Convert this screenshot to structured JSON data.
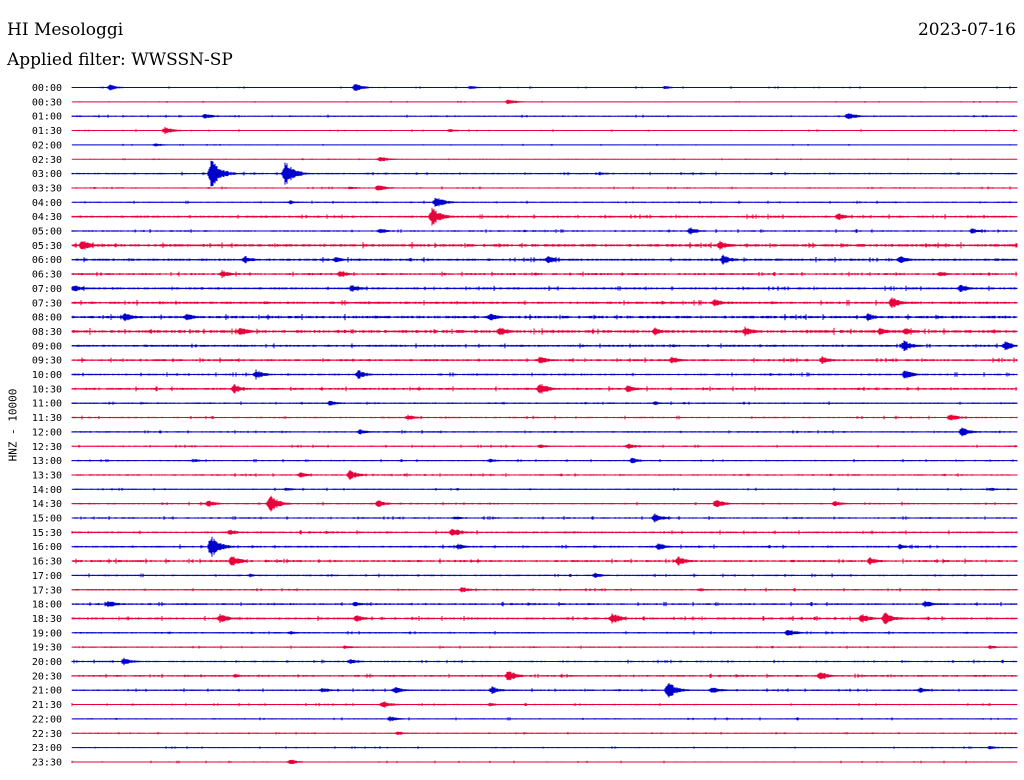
{
  "header": {
    "station": "HI Mesologgi",
    "date": "2023-07-16",
    "filter": "Applied filter: WWSSN-SP"
  },
  "chart_data": {
    "type": "line",
    "subtype": "helicorder",
    "ylabel": "HNZ - 10000",
    "row_labels": [
      "00:00",
      "00:30",
      "01:00",
      "01:30",
      "02:00",
      "02:30",
      "03:00",
      "03:30",
      "04:00",
      "04:30",
      "05:00",
      "05:30",
      "06:00",
      "06:30",
      "07:00",
      "07:30",
      "08:00",
      "08:30",
      "09:00",
      "09:30",
      "10:00",
      "10:30",
      "11:00",
      "11:30",
      "12:00",
      "12:30",
      "13:00",
      "13:30",
      "14:00",
      "14:30",
      "15:00",
      "15:30",
      "16:00",
      "16:30",
      "17:00",
      "17:30",
      "18:00",
      "18:30",
      "19:00",
      "19:30",
      "20:00",
      "20:30",
      "21:00",
      "21:30",
      "22:00",
      "22:30",
      "23:00",
      "23:30"
    ],
    "colors": [
      "#0000cc",
      "#e8003a"
    ],
    "noise_level": [
      0.4,
      0.3,
      0.5,
      0.4,
      0.3,
      0.3,
      0.6,
      0.5,
      0.5,
      0.8,
      0.6,
      1.0,
      0.9,
      0.8,
      0.8,
      0.9,
      1.0,
      1.1,
      0.8,
      0.8,
      0.7,
      0.8,
      0.6,
      0.6,
      0.6,
      0.5,
      0.5,
      0.6,
      0.5,
      0.6,
      0.6,
      0.7,
      0.7,
      0.8,
      0.6,
      0.6,
      0.7,
      0.8,
      0.6,
      0.5,
      0.6,
      0.7,
      0.6,
      0.5,
      0.5,
      0.4,
      0.4,
      0.4
    ],
    "events": [
      [
        [
          110,
          3
        ],
        [
          355,
          4
        ],
        [
          470,
          2
        ],
        [
          665,
          2
        ]
      ],
      [
        [
          508,
          3
        ]
      ],
      [
        [
          205,
          3
        ],
        [
          848,
          4
        ]
      ],
      [
        [
          165,
          4
        ],
        [
          450,
          2
        ]
      ],
      [
        [
          155,
          2
        ]
      ],
      [
        [
          380,
          3
        ]
      ],
      [
        [
          211,
          16
        ],
        [
          285,
          13
        ],
        [
          600,
          2
        ]
      ],
      [
        [
          378,
          4
        ],
        [
          350,
          2
        ]
      ],
      [
        [
          436,
          6
        ],
        [
          290,
          2
        ]
      ],
      [
        [
          432,
          10
        ],
        [
          838,
          4
        ]
      ],
      [
        [
          690,
          4
        ],
        [
          380,
          3
        ],
        [
          972,
          3
        ]
      ],
      [
        [
          82,
          6
        ],
        [
          720,
          5
        ],
        [
          860,
          2
        ]
      ],
      [
        [
          245,
          4
        ],
        [
          335,
          3
        ],
        [
          548,
          4
        ],
        [
          723,
          5
        ],
        [
          900,
          4
        ]
      ],
      [
        [
          222,
          4
        ],
        [
          340,
          4
        ],
        [
          940,
          3
        ]
      ],
      [
        [
          74,
          4
        ],
        [
          352,
          4
        ],
        [
          960,
          4
        ]
      ],
      [
        [
          715,
          4
        ],
        [
          892,
          6
        ],
        [
          265,
          2
        ]
      ],
      [
        [
          125,
          5
        ],
        [
          187,
          4
        ],
        [
          490,
          4
        ],
        [
          868,
          4
        ]
      ],
      [
        [
          240,
          5
        ],
        [
          500,
          5
        ],
        [
          655,
          4
        ],
        [
          745,
          5
        ],
        [
          880,
          4
        ],
        [
          905,
          4
        ]
      ],
      [
        [
          904,
          6
        ],
        [
          1005,
          5
        ]
      ],
      [
        [
          540,
          4
        ],
        [
          672,
          4
        ],
        [
          822,
          4
        ]
      ],
      [
        [
          256,
          5
        ],
        [
          358,
          5
        ],
        [
          905,
          5
        ]
      ],
      [
        [
          234,
          5
        ],
        [
          540,
          6
        ],
        [
          628,
          4
        ]
      ],
      [
        [
          330,
          3
        ],
        [
          655,
          2
        ]
      ],
      [
        [
          408,
          3
        ],
        [
          950,
          4
        ]
      ],
      [
        [
          360,
          3
        ],
        [
          962,
          5
        ]
      ],
      [
        [
          540,
          2
        ],
        [
          628,
          3
        ]
      ],
      [
        [
          193,
          2
        ],
        [
          490,
          2
        ],
        [
          632,
          3
        ]
      ],
      [
        [
          300,
          3
        ],
        [
          350,
          5
        ]
      ],
      [
        [
          286,
          2
        ],
        [
          990,
          2
        ]
      ],
      [
        [
          270,
          9
        ],
        [
          208,
          4
        ],
        [
          378,
          4
        ],
        [
          716,
          5
        ],
        [
          835,
          3
        ]
      ],
      [
        [
          655,
          5
        ],
        [
          455,
          2
        ]
      ],
      [
        [
          230,
          3
        ],
        [
          452,
          5
        ]
      ],
      [
        [
          211,
          12
        ],
        [
          458,
          3
        ],
        [
          658,
          4
        ],
        [
          900,
          3
        ]
      ],
      [
        [
          232,
          6
        ],
        [
          678,
          5
        ],
        [
          870,
          4
        ]
      ],
      [
        [
          595,
          3
        ],
        [
          250,
          2
        ]
      ],
      [
        [
          462,
          3
        ],
        [
          700,
          2
        ]
      ],
      [
        [
          108,
          4
        ],
        [
          355,
          3
        ],
        [
          925,
          4
        ]
      ],
      [
        [
          220,
          5
        ],
        [
          356,
          4
        ],
        [
          612,
          6
        ],
        [
          862,
          5
        ],
        [
          885,
          7
        ]
      ],
      [
        [
          290,
          2
        ],
        [
          788,
          4
        ]
      ],
      [
        [
          345,
          2
        ],
        [
          990,
          2
        ]
      ],
      [
        [
          124,
          4
        ],
        [
          350,
          3
        ]
      ],
      [
        [
          508,
          6
        ],
        [
          820,
          5
        ],
        [
          235,
          2
        ]
      ],
      [
        [
          322,
          3
        ],
        [
          395,
          4
        ],
        [
          492,
          4
        ],
        [
          668,
          9
        ],
        [
          712,
          4
        ],
        [
          920,
          3
        ]
      ],
      [
        [
          383,
          4
        ],
        [
          490,
          2
        ]
      ],
      [
        [
          390,
          3
        ]
      ],
      [
        [
          398,
          2
        ]
      ],
      [
        [
          990,
          2
        ]
      ],
      [
        [
          290,
          3
        ]
      ]
    ]
  }
}
